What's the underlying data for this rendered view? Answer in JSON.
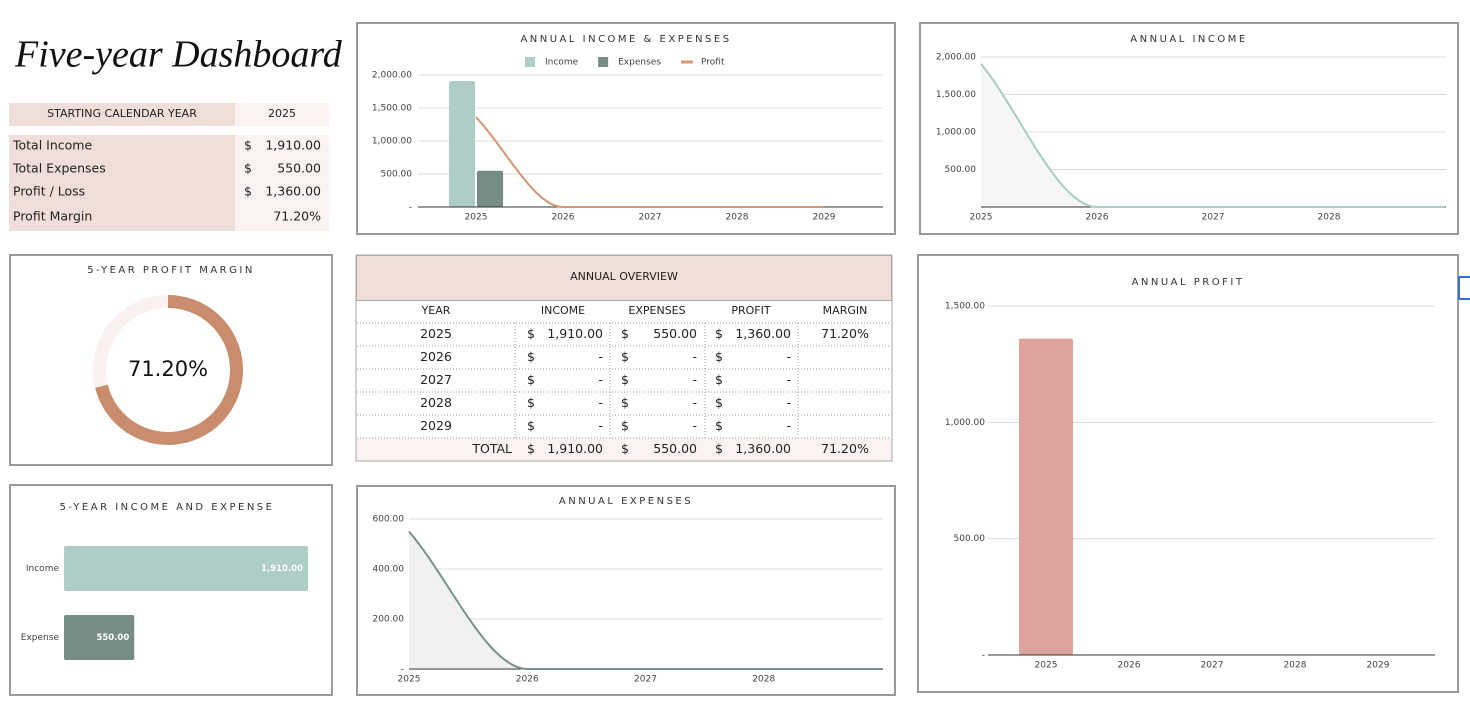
{
  "header": {
    "title": "Five-year Dashboard"
  },
  "summary": {
    "start_label": "STARTING CALENDAR YEAR",
    "start_year": 2025,
    "rows": [
      {
        "label": "Total Income",
        "currency": "$",
        "value": "1,910.00"
      },
      {
        "label": "Total Expenses",
        "currency": "$",
        "value": "550.00"
      },
      {
        "label": "Profit / Loss",
        "currency": "$",
        "value": "1,360.00"
      },
      {
        "label": "Profit Margin",
        "value": "71.20%"
      }
    ]
  },
  "overview": {
    "title": "ANNUAL OVERVIEW",
    "columns": [
      "YEAR",
      "INCOME",
      "EXPENSES",
      "PROFIT",
      "MARGIN"
    ],
    "rows": [
      [
        "2025",
        "$",
        "1,910.00",
        "$",
        "550.00",
        "$",
        "1,360.00",
        "71.20%"
      ],
      [
        "2026",
        "$",
        "-",
        "$",
        "-",
        "$",
        "-"
      ],
      [
        "2027",
        "$",
        "-",
        "$",
        "-",
        "$",
        "-"
      ],
      [
        "2028",
        "$",
        "-",
        "$",
        "-",
        "$",
        "-"
      ],
      [
        "2029",
        "$",
        "-",
        "$",
        "-",
        "$",
        "-"
      ]
    ],
    "total": [
      "TOTAL",
      "$",
      "1,910.00",
      "$",
      "550.00",
      "$",
      "1,360.00",
      "71.20%"
    ]
  },
  "chart_data": [
    {
      "type": "bar",
      "title": "ANNUAL INCOME & EXPENSES",
      "categories": [
        "2025",
        "2026",
        "2027",
        "2028",
        "2029"
      ],
      "series": [
        {
          "name": "Income",
          "color": "#aecdc6",
          "values": [
            1910,
            0,
            0,
            0,
            0
          ]
        },
        {
          "name": "Expenses",
          "color": "#778c87",
          "values": [
            550,
            0,
            0,
            0,
            0
          ]
        },
        {
          "name": "Profit",
          "color": "#d49573",
          "type": "line",
          "values": [
            1360,
            0,
            0,
            0,
            0
          ]
        }
      ],
      "ylim": [
        0,
        2000
      ],
      "yticks": [
        {
          "value": 0,
          "label": "-"
        },
        {
          "value": 500,
          "label": "500.00"
        },
        {
          "value": 1000,
          "label": "1,000.00"
        },
        {
          "value": 1500,
          "label": "1,500.00"
        },
        {
          "value": 2000,
          "label": "2,000.00"
        }
      ],
      "grid": true,
      "legend": "top"
    },
    {
      "type": "area",
      "title": "ANNUAL INCOME",
      "categories": [
        "2025",
        "2026",
        "2027",
        "2028",
        null
      ],
      "values": [
        1910,
        0,
        0,
        0,
        0
      ],
      "color": "#a8cdc4",
      "area_color": "#f4f7f6",
      "ylim": [
        0,
        2000
      ],
      "yticks": [
        {
          "value": 500,
          "label": "500.00"
        },
        {
          "value": 1000,
          "label": "1,000.00"
        },
        {
          "value": 1500,
          "label": "1,500.00"
        },
        {
          "value": 2000,
          "label": "2,000.00"
        }
      ],
      "grid": true
    },
    {
      "type": "donut",
      "title": "5-YEAR PROFIT MARGIN",
      "values": [
        71.2,
        28.8
      ],
      "value_labels": [
        "71.20%",
        null
      ],
      "colors": [
        "#c98c6c",
        "#fbf1f0"
      ]
    },
    {
      "type": "hbar",
      "title": "5-YEAR INCOME AND EXPENSE",
      "categories": [
        "Income",
        "Expense"
      ],
      "values": [
        1910,
        550
      ],
      "value_labels": [
        "1,910.00",
        "550.00"
      ],
      "colors": [
        "#aecdc6",
        "#778c87"
      ],
      "xlim": [
        0,
        1910
      ]
    },
    {
      "type": "area",
      "title": "ANNUAL EXPENSES",
      "categories": [
        "2025",
        "2026",
        "2027",
        "2028",
        null
      ],
      "values": [
        550,
        0,
        0,
        0,
        0
      ],
      "color": "#7a918b",
      "area_color": "#eff2f1",
      "ylim": [
        0,
        600
      ],
      "yticks": [
        {
          "value": 0,
          "label": "-"
        },
        {
          "value": 200,
          "label": "200.00"
        },
        {
          "value": 400,
          "label": "400.00"
        },
        {
          "value": 600,
          "label": "600.00"
        }
      ],
      "grid": true
    },
    {
      "type": "bar",
      "title": "ANNUAL PROFIT",
      "categories": [
        "2025",
        "2026",
        "2027",
        "2028",
        "2029"
      ],
      "values": [
        1360,
        0,
        0,
        0,
        0
      ],
      "color": "#dfa39d",
      "ylim": [
        0,
        1500
      ],
      "yticks": [
        {
          "value": 0,
          "label": "-"
        },
        {
          "value": 500,
          "label": "500.00"
        },
        {
          "value": 1000,
          "label": "1,000.00"
        },
        {
          "value": 1500,
          "label": "1,500.00"
        }
      ],
      "grid": true
    }
  ]
}
